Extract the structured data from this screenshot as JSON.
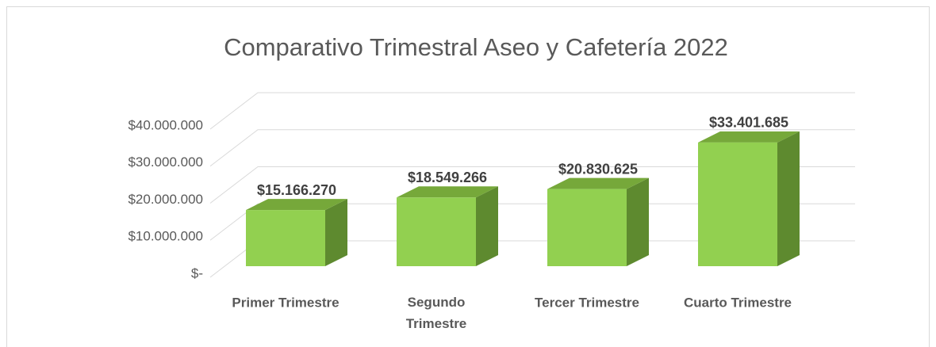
{
  "chart_data": {
    "type": "bar3d",
    "title": "Comparativo Trimestral Aseo y Cafetería 2022",
    "categories": [
      "Primer Trimestre",
      "Segundo Trimestre",
      "Tercer Trimestre",
      "Cuarto Trimestre"
    ],
    "values": [
      15166270,
      18549266,
      20830625,
      33401685
    ],
    "value_labels": [
      "$15.166.270",
      "$18.549.266",
      "$20.830.625",
      "$33.401.685"
    ],
    "color": "#92d050",
    "ylim": [
      0,
      40000000
    ],
    "yticks": [
      {
        "value": 0,
        "label": "$-"
      },
      {
        "value": 10000000,
        "label": "$10.000.000"
      },
      {
        "value": 20000000,
        "label": "$20.000.000"
      },
      {
        "value": 30000000,
        "label": "$30.000.000"
      },
      {
        "value": 40000000,
        "label": "$40.000.000"
      }
    ],
    "grid": true
  }
}
